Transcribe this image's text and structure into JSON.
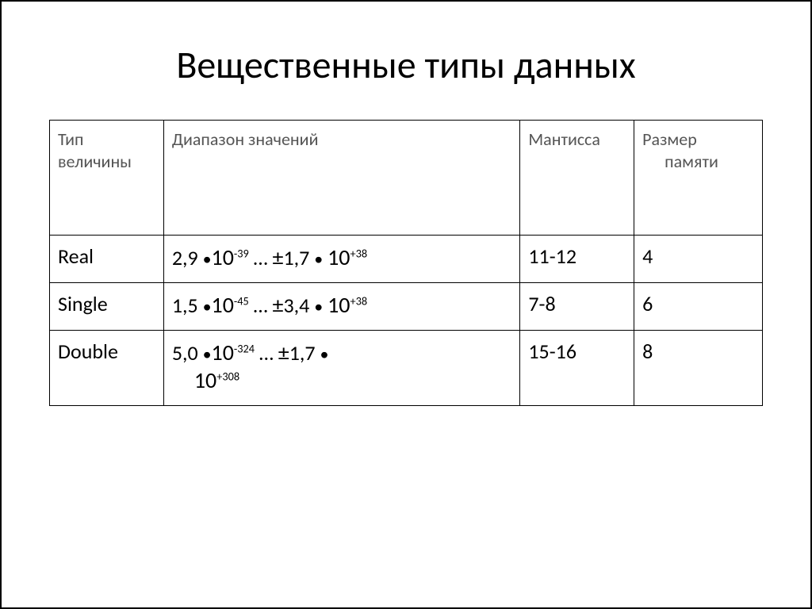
{
  "title": "Вещественные типы данных",
  "table": {
    "columns": [
      "Тип величины",
      "Диапазон значений",
      "Мантисса",
      "Размер памяти"
    ],
    "col_widths_pct": [
      16,
      50,
      16,
      18
    ],
    "header_font_size_pt": 22,
    "header_color": "#555555",
    "body_font_size_pt": 26,
    "border_color": "#000000",
    "rows": [
      {
        "type": "Real",
        "range": {
          "lo_coef": "2,9",
          "lo_exp": "-39",
          "hi_coef": "1,7",
          "hi_exp": "+38",
          "wrap_second_base": false
        },
        "mantissa": "11-12",
        "memory": "4"
      },
      {
        "type": "Single",
        "range": {
          "lo_coef": "1,5",
          "lo_exp": "-45",
          "hi_coef": "3,4",
          "hi_exp": "+38",
          "wrap_second_base": false
        },
        "mantissa": "7-8",
        "memory": "6"
      },
      {
        "type": "Double",
        "range": {
          "lo_coef": "5,0",
          "lo_exp": "-324",
          "hi_coef": "1,7",
          "hi_exp": "+308",
          "wrap_second_base": true
        },
        "mantissa": "15-16",
        "memory": "8"
      }
    ]
  },
  "style": {
    "background_color": "#ffffff",
    "text_color": "#000000",
    "title_font_size_pt": 48,
    "font_family": "Calibri"
  }
}
